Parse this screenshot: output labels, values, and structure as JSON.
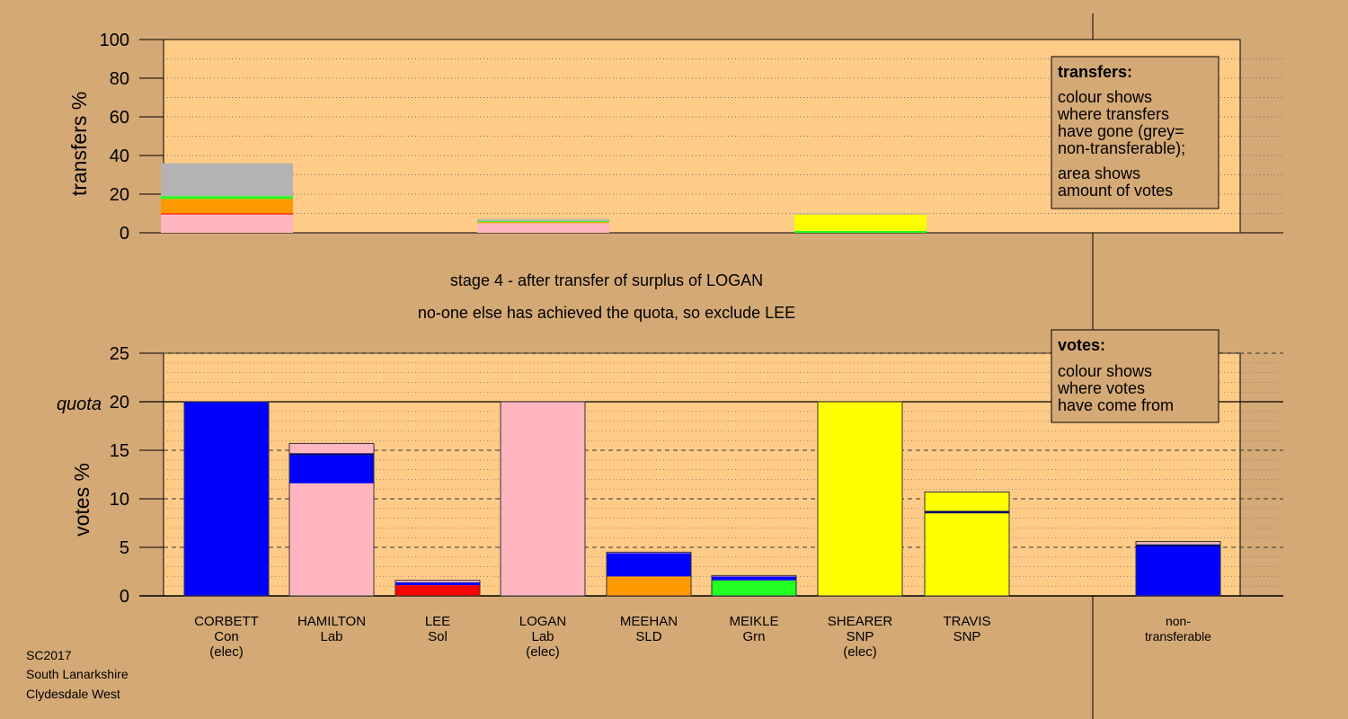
{
  "chart_data": [
    {
      "type": "bar",
      "panel": "transfers",
      "ylabel": "transfers %",
      "ylim": [
        0,
        100
      ],
      "yticks": [
        0,
        20,
        40,
        60,
        80,
        100
      ],
      "grid": "dotted every 10",
      "bars": [
        {
          "slot": 0,
          "segments": [
            {
              "color": "#ffb6c1",
              "value": 9.5
            },
            {
              "color": "#ff0000",
              "value": 0.5
            },
            {
              "color": "#ff9900",
              "value": 7.5
            },
            {
              "color": "#22ff22",
              "value": 1.5
            },
            {
              "color": "#b3b3b3",
              "value": 17
            }
          ]
        },
        {
          "slot": 3,
          "segments": [
            {
              "color": "#ffb6c1",
              "value": 5
            },
            {
              "color": "#ff9900",
              "value": 0.5
            },
            {
              "color": "#22ff22",
              "value": 0.5
            },
            {
              "color": "#b3b3b3",
              "value": 1
            }
          ]
        },
        {
          "slot": 6,
          "segments": [
            {
              "color": "#22ff22",
              "value": 1
            },
            {
              "color": "#ffff00",
              "value": 8.5
            },
            {
              "color": "#b3b3b3",
              "value": 0.5
            }
          ]
        }
      ],
      "legend": {
        "title": "transfers:",
        "lines1": [
          "colour shows",
          "where transfers",
          "have gone (grey=",
          "non-transferable);"
        ],
        "lines2": [
          "area shows",
          "amount of votes"
        ]
      }
    },
    {
      "type": "bar",
      "panel": "votes",
      "title_lines": [
        "stage 4 - after transfer of surplus of LOGAN",
        "no-one else has achieved the quota, so exclude LEE"
      ],
      "ylabel": "votes %",
      "ylim": [
        0,
        25
      ],
      "yticks": [
        0,
        5,
        10,
        15,
        20,
        25
      ],
      "quota": 20,
      "quota_label": "quota",
      "categories": [
        [
          "CORBETT",
          "Con",
          "(elec)"
        ],
        [
          "HAMILTON",
          "Lab"
        ],
        [
          "LEE",
          "Sol"
        ],
        [
          "LOGAN",
          "Lab",
          "(elec)"
        ],
        [
          "MEEHAN",
          "SLD"
        ],
        [
          "MEIKLE",
          "Grn"
        ],
        [
          "SHEARER",
          "SNP",
          "(elec)"
        ],
        [
          "TRAVIS",
          "SNP"
        ],
        [
          "non-",
          "transferable"
        ]
      ],
      "bars": [
        {
          "slot": 0,
          "segments": [
            {
              "color": "#0000ff",
              "value": 20
            }
          ]
        },
        {
          "slot": 1,
          "segments": [
            {
              "color": "#ffb6c1",
              "value": 11.6
            },
            {
              "color": "#0000ff",
              "value": 2.9
            },
            {
              "color": "#000066",
              "value": 0.2
            },
            {
              "color": "#ffb6c1",
              "value": 1.0
            }
          ]
        },
        {
          "slot": 2,
          "segments": [
            {
              "color": "#ff0000",
              "value": 1.1
            },
            {
              "color": "#0000ff",
              "value": 0.3
            },
            {
              "color": "#ffb6c1",
              "value": 0.2
            }
          ]
        },
        {
          "slot": 3,
          "segments": [
            {
              "color": "#ffb6c1",
              "value": 20
            }
          ]
        },
        {
          "slot": 4,
          "segments": [
            {
              "color": "#ff9900",
              "value": 2.0
            },
            {
              "color": "#0000ff",
              "value": 2.4
            },
            {
              "color": "#ffb6c1",
              "value": 0.1
            }
          ]
        },
        {
          "slot": 5,
          "segments": [
            {
              "color": "#22ff22",
              "value": 1.6
            },
            {
              "color": "#0000ff",
              "value": 0.4
            },
            {
              "color": "#ffb6c1",
              "value": 0.1
            }
          ]
        },
        {
          "slot": 6,
          "segments": [
            {
              "color": "#ffff00",
              "value": 20
            }
          ]
        },
        {
          "slot": 7,
          "segments": [
            {
              "color": "#ffff00",
              "value": 8.5
            },
            {
              "color": "#000066",
              "value": 0.25
            },
            {
              "color": "#ffff00",
              "value": 1.95
            }
          ]
        },
        {
          "slot": 9,
          "segments": [
            {
              "color": "#0000ff",
              "value": 5.1
            },
            {
              "color": "#000066",
              "value": 0.2
            },
            {
              "color": "#b3b3b3",
              "value": 0.1
            },
            {
              "color": "#ffb6c1",
              "value": 0.2
            }
          ]
        }
      ],
      "legend": {
        "title": "votes:",
        "lines1": [
          "colour shows",
          "where votes",
          "have come from"
        ]
      }
    }
  ],
  "footer": {
    "lines": [
      "SC2017",
      "South Lanarkshire",
      "Clydesdale West"
    ]
  },
  "colors": {
    "background": "#d4a976",
    "plot_area": "#ffcc88"
  }
}
